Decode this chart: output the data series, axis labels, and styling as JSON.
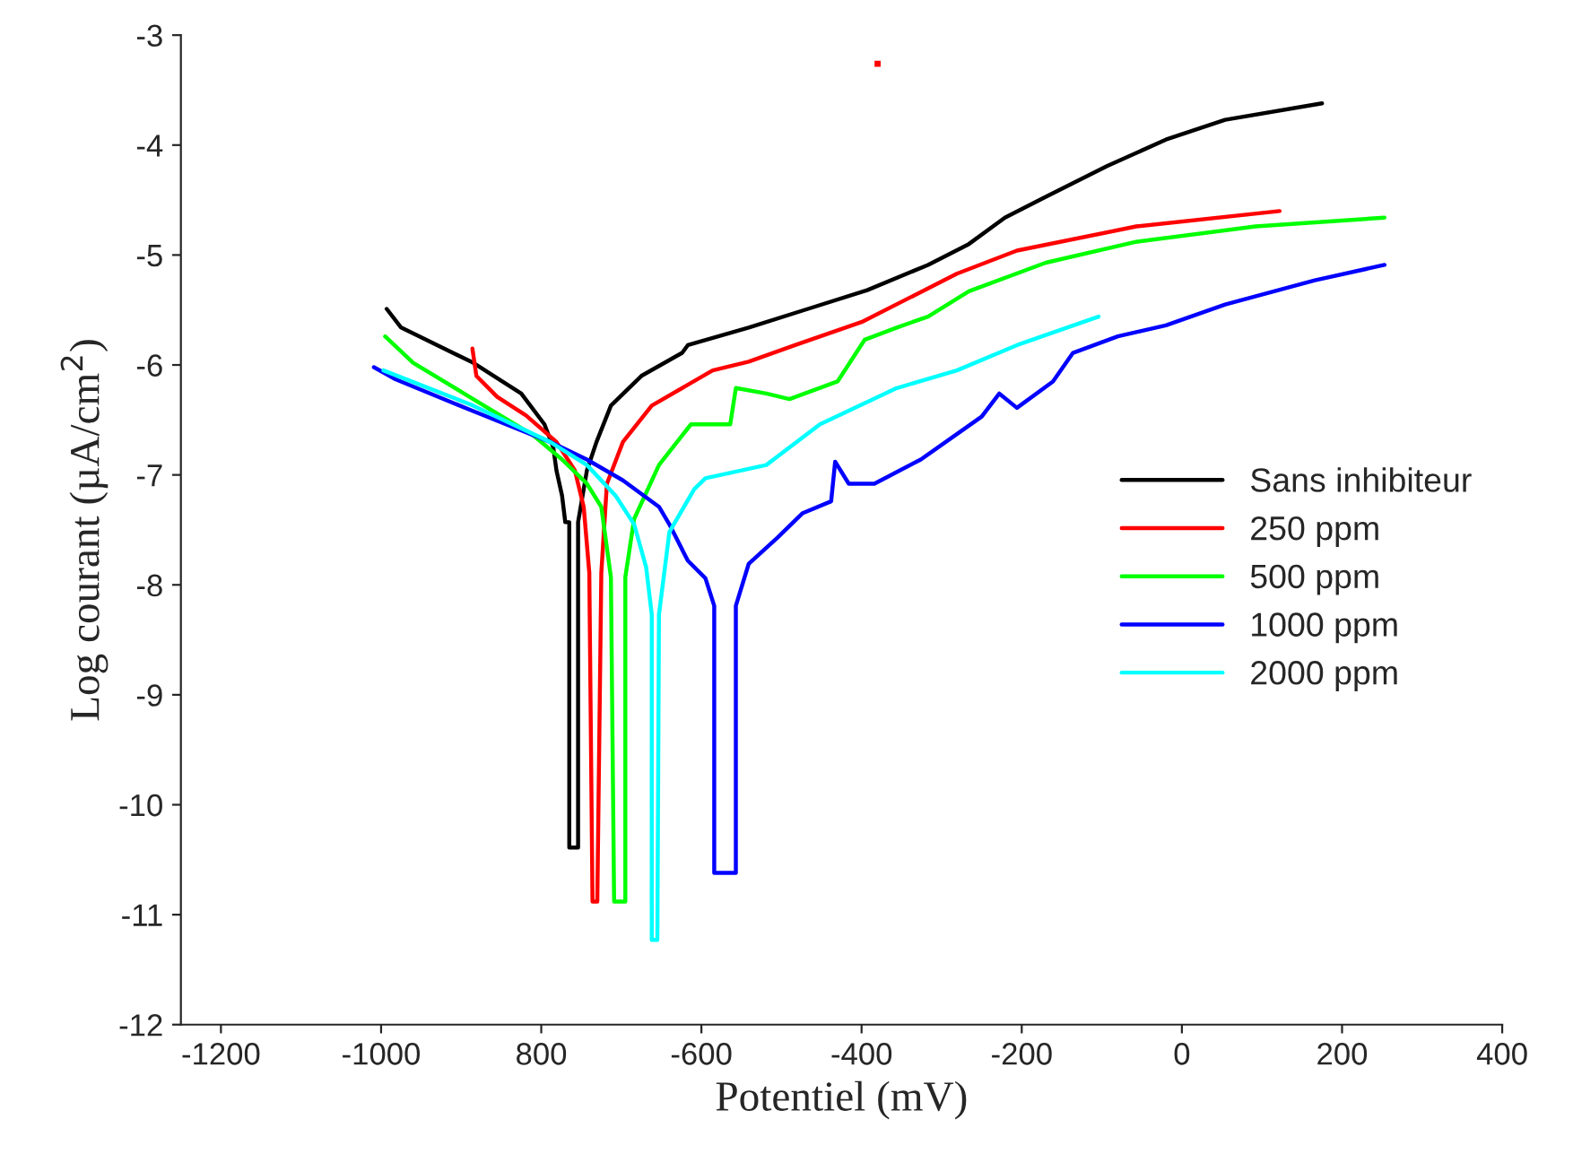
{
  "chart_data": {
    "type": "line",
    "xlabel": "Potentiel (mV)",
    "ylabel": "Log courant (µA/cm$^{2}$)",
    "xlim": [
      -1250,
      400
    ],
    "xticks": [
      -1200,
      -1000,
      {
        "value": -800,
        "label": "800"
      },
      -600,
      -400,
      -200,
      0,
      200,
      400
    ],
    "ylim": [
      -12,
      -3
    ],
    "yticks": [
      -12,
      -11,
      -10,
      -9,
      -8,
      -7,
      -6,
      -5,
      -4,
      -3
    ],
    "legend": "right",
    "grid": false,
    "marker": "none",
    "line_style": "solid",
    "series": [
      {
        "name": "Sans inhibiteur",
        "color": "#000000",
        "x": [
          -993,
          -975,
          -885,
          -825,
          -796,
          -785,
          -781,
          -774,
          -770,
          -765,
          -765,
          -754,
          -754,
          -743,
          -731,
          -713,
          -675,
          -624,
          -617,
          -541,
          -467,
          -393,
          -317,
          -266,
          -221,
          -170,
          -93,
          -20,
          54,
          175
        ],
        "values": [
          -5.49,
          -5.66,
          -5.98,
          -6.26,
          -6.54,
          -6.75,
          -6.96,
          -7.19,
          -7.43,
          -7.43,
          -10.39,
          -10.39,
          -7.43,
          -6.96,
          -6.7,
          -6.37,
          -6.1,
          -5.89,
          -5.82,
          -5.66,
          -5.49,
          -5.32,
          -5.09,
          -4.9,
          -4.66,
          -4.47,
          -4.19,
          -3.95,
          -3.77,
          -3.62
        ]
      },
      {
        "name": "250 ppm",
        "color": "#ff0000",
        "x": [
          -886,
          -881,
          -855,
          -819,
          -781,
          -758,
          -747,
          -740,
          -736,
          -730,
          -725,
          -725,
          -718,
          -698,
          -662,
          -586,
          -541,
          -483,
          -400,
          -281,
          -206,
          -57,
          122
        ],
        "values": [
          -5.85,
          -6.1,
          -6.29,
          -6.46,
          -6.7,
          -6.96,
          -7.29,
          -7.89,
          -10.88,
          -10.88,
          -7.89,
          -7.89,
          -7.08,
          -6.7,
          -6.37,
          -6.05,
          -5.97,
          -5.82,
          -5.61,
          -5.17,
          -4.96,
          -4.74,
          -4.6
        ]
      },
      {
        "type": "scatter",
        "marker": "square",
        "color": "#ff0000",
        "x": [
          -380
        ],
        "values": [
          -3.26
        ]
      },
      {
        "name": "500 ppm",
        "color": "#00ff00",
        "x": [
          -995,
          -960,
          -885,
          -810,
          -774,
          -743,
          -725,
          -713,
          -709,
          -695,
          -695,
          -684,
          -653,
          -624,
          -613,
          -564,
          -557,
          -519,
          -490,
          -430,
          -396,
          -356,
          -317,
          -266,
          -170,
          -57,
          92,
          253
        ],
        "values": [
          -5.74,
          -5.98,
          -6.31,
          -6.64,
          -6.86,
          -7.08,
          -7.29,
          -7.93,
          -10.88,
          -10.88,
          -7.93,
          -7.4,
          -6.91,
          -6.64,
          -6.54,
          -6.54,
          -6.21,
          -6.26,
          -6.31,
          -6.15,
          -5.77,
          -5.66,
          -5.56,
          -5.33,
          -5.07,
          -4.88,
          -4.74,
          -4.66
        ]
      },
      {
        "name": "1000 ppm",
        "color": "#0000ff",
        "x": [
          -1009,
          -982,
          -885,
          -789,
          -743,
          -698,
          -653,
          -640,
          -617,
          -595,
          -584,
          -584,
          -557,
          -557,
          -541,
          -505,
          -474,
          -438,
          -433,
          -416,
          -384,
          -326,
          -250,
          -228,
          -206,
          -161,
          -136,
          -80,
          -20,
          54,
          166,
          253
        ],
        "values": [
          -6.02,
          -6.13,
          -6.42,
          -6.7,
          -6.86,
          -7.05,
          -7.29,
          -7.45,
          -7.78,
          -7.94,
          -8.19,
          -10.62,
          -10.62,
          -8.19,
          -7.81,
          -7.57,
          -7.35,
          -7.24,
          -6.88,
          -7.08,
          -7.08,
          -6.86,
          -6.47,
          -6.26,
          -6.39,
          -6.15,
          -5.89,
          -5.74,
          -5.64,
          -5.45,
          -5.23,
          -5.09
        ]
      },
      {
        "name": "2000 ppm",
        "color": "#00ffff",
        "x": [
          -997,
          -885,
          -789,
          -743,
          -707,
          -684,
          -669,
          -662,
          -662,
          -655,
          -653,
          -640,
          -609,
          -595,
          -519,
          -452,
          -356,
          -281,
          -206,
          -104
        ],
        "values": [
          -6.05,
          -6.37,
          -6.7,
          -6.91,
          -7.19,
          -7.45,
          -7.84,
          -8.27,
          -11.23,
          -11.23,
          -8.27,
          -7.52,
          -7.13,
          -7.03,
          -6.91,
          -6.54,
          -6.21,
          -6.05,
          -5.82,
          -5.56
        ]
      }
    ]
  }
}
